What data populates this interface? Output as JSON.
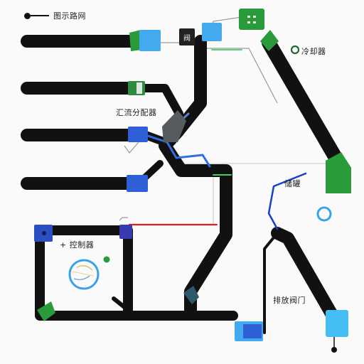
{
  "legend": {
    "label": "图示路网"
  },
  "labels": {
    "top_right": "冷却器",
    "mid_left": "汇流分配器",
    "mid_right": "储罐",
    "left_box": "+ 控制器",
    "bottom_right": "排放阀门"
  },
  "node_text": {
    "top_gray": "阀"
  },
  "colors": {
    "pipe": "#111111",
    "blue_node": "#2f5fd6",
    "cyan_node": "#44aaf0",
    "green_node": "#2a9a3a",
    "red_line": "#e02020",
    "blue_line": "#1a3fc8"
  }
}
